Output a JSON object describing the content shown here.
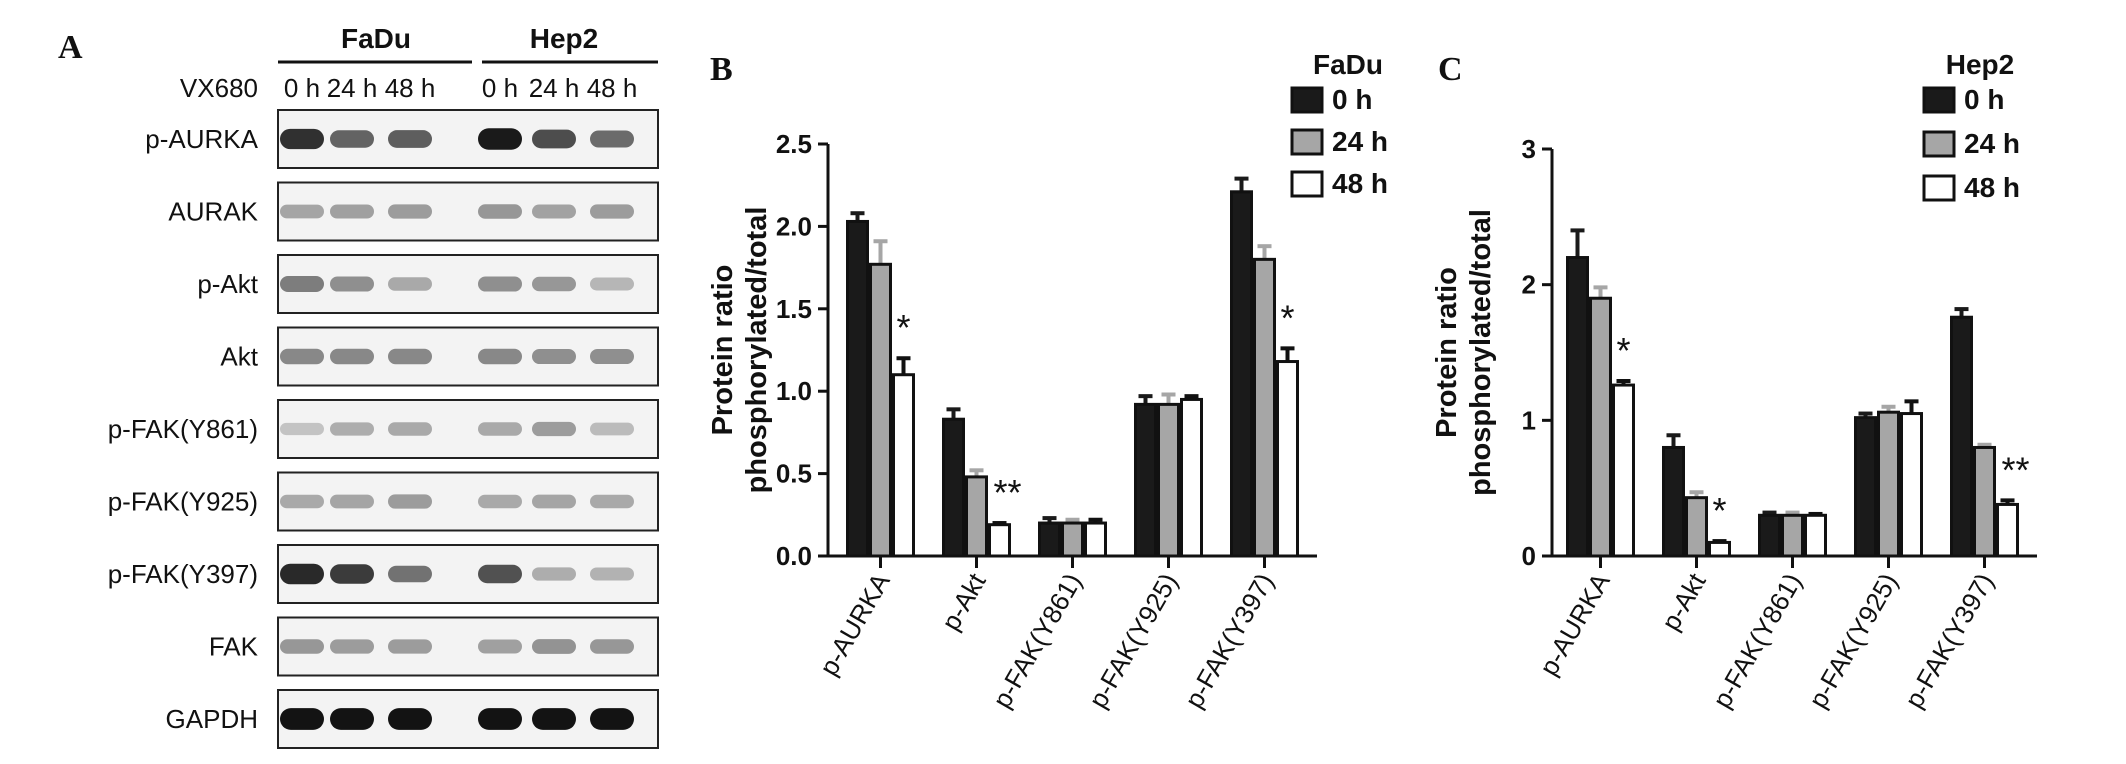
{
  "panels": {
    "a": {
      "letter": "A",
      "cell_lines": [
        "FaDu",
        "Hep2"
      ],
      "treatment_label": "VX680",
      "time_points": [
        "0 h",
        "24 h",
        "48 h",
        "0 h",
        "24 h",
        "48 h"
      ],
      "blots": [
        {
          "label": "p-AURKA",
          "intensity": [
            0.85,
            0.62,
            0.64,
            0.95,
            0.72,
            0.58
          ]
        },
        {
          "label": "AURAK",
          "intensity": [
            0.32,
            0.34,
            0.36,
            0.38,
            0.33,
            0.36
          ]
        },
        {
          "label": "p-Akt",
          "intensity": [
            0.5,
            0.42,
            0.3,
            0.42,
            0.38,
            0.24
          ]
        },
        {
          "label": "Akt",
          "intensity": [
            0.45,
            0.45,
            0.45,
            0.45,
            0.42,
            0.42
          ]
        },
        {
          "label": "p-FAK(Y861)",
          "intensity": [
            0.18,
            0.28,
            0.3,
            0.3,
            0.36,
            0.22
          ]
        },
        {
          "label": "p-FAK(Y925)",
          "intensity": [
            0.3,
            0.32,
            0.36,
            0.3,
            0.32,
            0.3
          ]
        },
        {
          "label": "p-FAK(Y397)",
          "intensity": [
            0.88,
            0.8,
            0.55,
            0.7,
            0.28,
            0.26
          ]
        },
        {
          "label": "FAK",
          "intensity": [
            0.38,
            0.36,
            0.36,
            0.34,
            0.4,
            0.38
          ]
        },
        {
          "label": "GAPDH",
          "intensity": [
            0.98,
            0.98,
            0.98,
            0.98,
            0.98,
            0.98
          ]
        }
      ]
    },
    "b": {
      "letter": "B"
    },
    "c": {
      "letter": "C"
    }
  },
  "chart_data": [
    {
      "type": "bar",
      "panel": "B",
      "legend_title": "FaDu",
      "ylabel_lines": [
        "Protein ratio",
        "phosphorylated/total"
      ],
      "ylim": [
        0,
        2.5
      ],
      "yticks": [
        "0.0",
        "0.5",
        "1.0",
        "1.5",
        "2.0",
        "2.5"
      ],
      "categories": [
        "p-AURKA",
        "p-Akt",
        "p-FAK(Y861)",
        "p-FAK(Y925)",
        "p-FAK(Y397)"
      ],
      "series": [
        {
          "name": "0 h",
          "color": "#1a1a1a",
          "values": [
            2.03,
            0.83,
            0.2,
            0.92,
            2.21
          ],
          "errors": [
            0.05,
            0.06,
            0.03,
            0.05,
            0.08
          ]
        },
        {
          "name": "24 h",
          "color": "#a6a6a6",
          "values": [
            1.77,
            0.48,
            0.2,
            0.92,
            1.8
          ],
          "errors": [
            0.14,
            0.04,
            0.02,
            0.06,
            0.08
          ]
        },
        {
          "name": "48 h",
          "color": "#ffffff",
          "values": [
            1.1,
            0.19,
            0.2,
            0.95,
            1.18
          ],
          "errors": [
            0.1,
            0.01,
            0.02,
            0.02,
            0.08
          ]
        }
      ],
      "annotations": [
        {
          "category": "p-AURKA",
          "text": "*"
        },
        {
          "category": "p-Akt",
          "text": "**"
        },
        {
          "category": "p-FAK(Y397)",
          "text": "*"
        }
      ]
    },
    {
      "type": "bar",
      "panel": "C",
      "legend_title": "Hep2",
      "ylabel_lines": [
        "Protein ratio",
        "phosphorylated/total"
      ],
      "ylim": [
        0,
        3
      ],
      "yticks": [
        "0",
        "1",
        "2",
        "3"
      ],
      "categories": [
        "p-AURKA",
        "p-Akt",
        "p-FAK(Y861)",
        "p-FAK(Y925)",
        "p-FAK(Y397)"
      ],
      "series": [
        {
          "name": "0 h",
          "color": "#1a1a1a",
          "values": [
            2.2,
            0.8,
            0.3,
            1.02,
            1.76
          ],
          "errors": [
            0.2,
            0.09,
            0.02,
            0.03,
            0.06
          ]
        },
        {
          "name": "24 h",
          "color": "#a6a6a6",
          "values": [
            1.9,
            0.43,
            0.3,
            1.06,
            0.8
          ],
          "errors": [
            0.08,
            0.04,
            0.02,
            0.04,
            0.02
          ]
        },
        {
          "name": "48 h",
          "color": "#ffffff",
          "values": [
            1.26,
            0.1,
            0.3,
            1.05,
            0.38
          ],
          "errors": [
            0.03,
            0.01,
            0.01,
            0.09,
            0.03
          ]
        }
      ],
      "annotations": [
        {
          "category": "p-AURKA",
          "text": "*"
        },
        {
          "category": "p-Akt",
          "text": "*"
        },
        {
          "category": "p-FAK(Y397)",
          "text": "**"
        }
      ]
    }
  ]
}
